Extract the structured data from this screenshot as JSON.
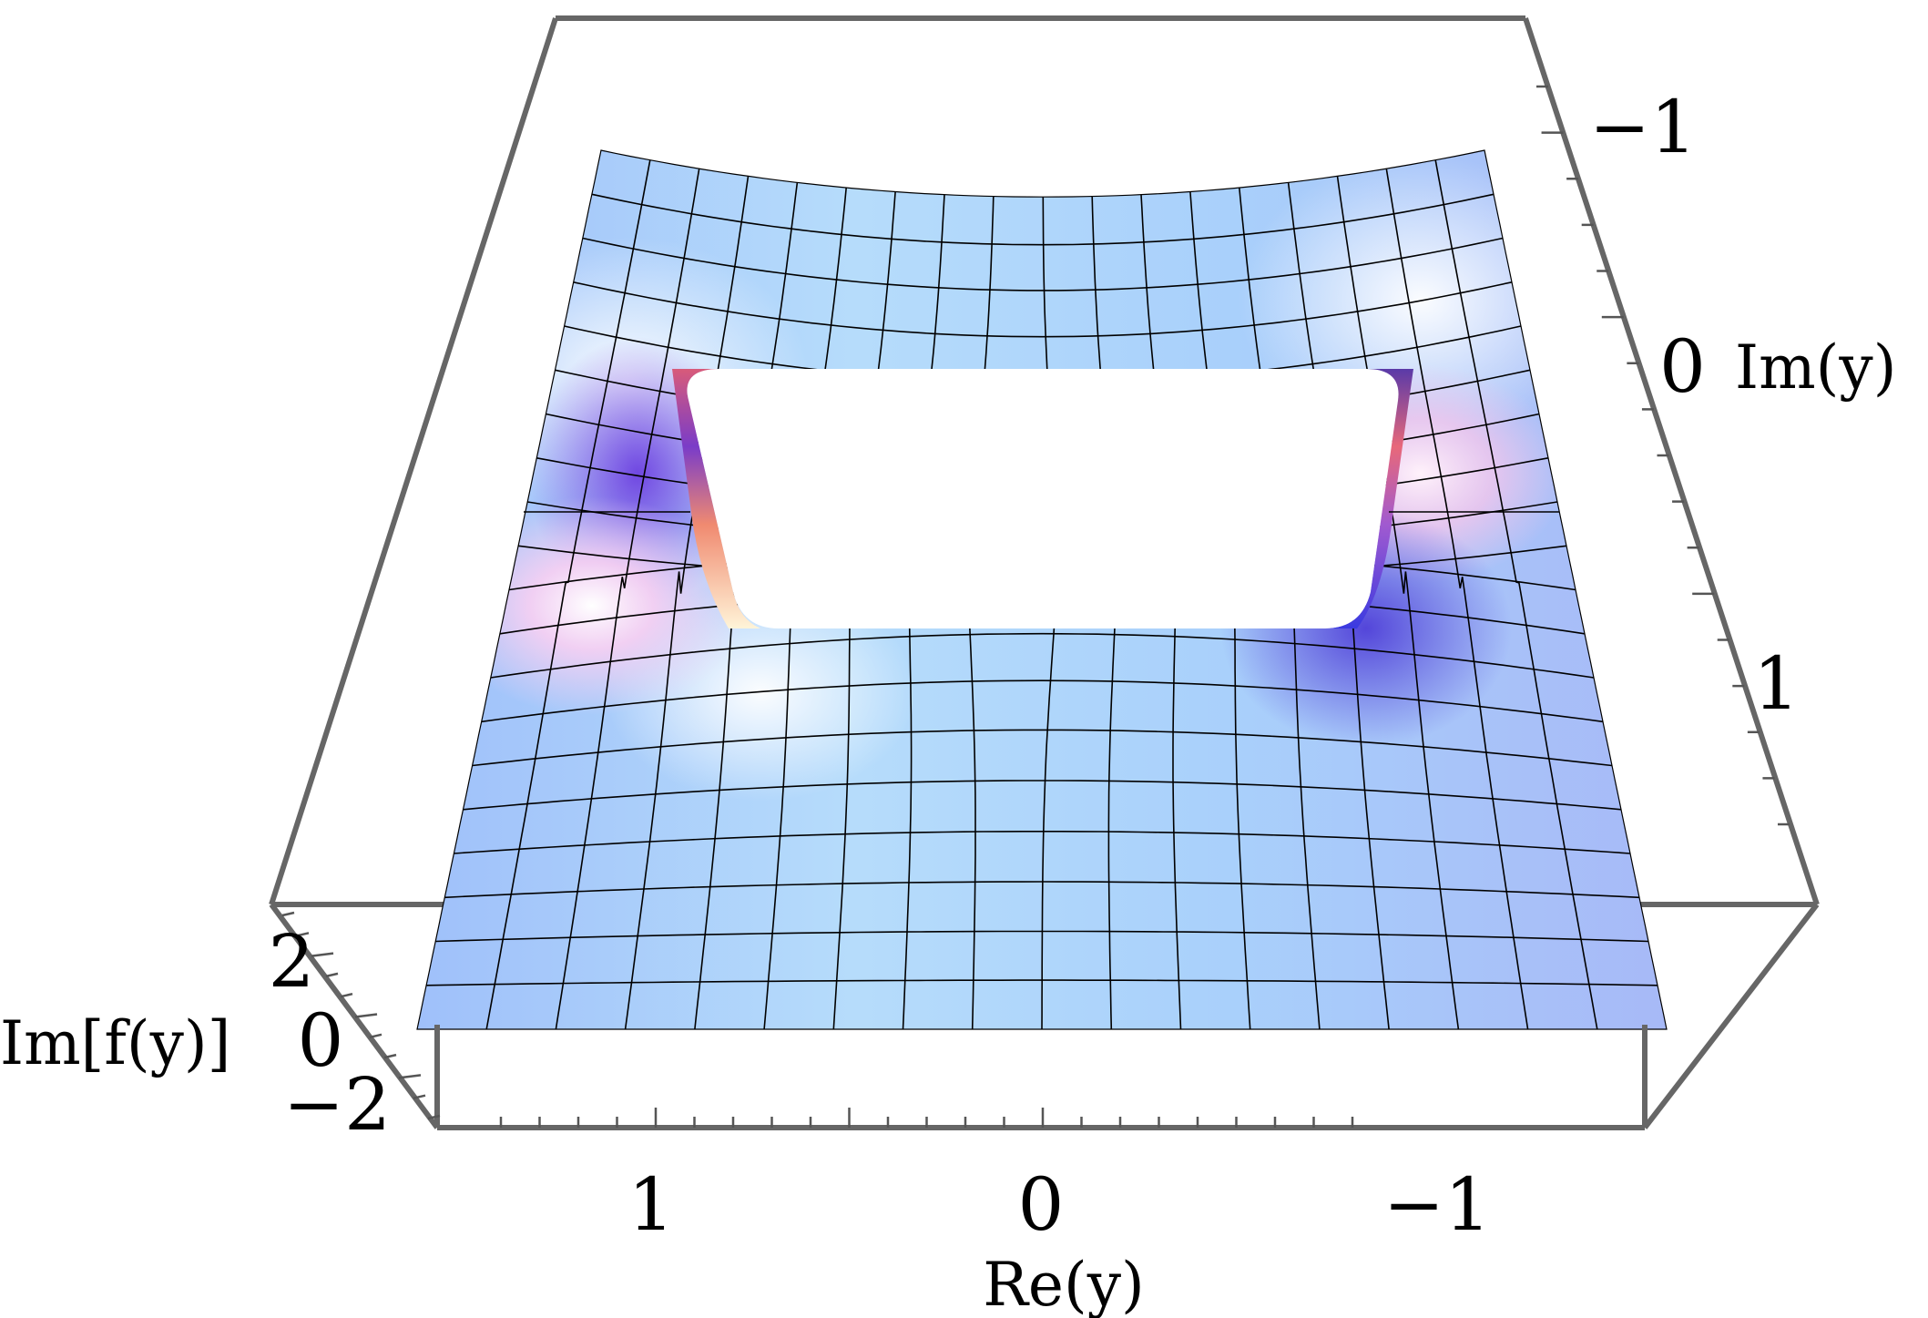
{
  "chart_data": {
    "type": "surface3d",
    "title": "",
    "axes": {
      "x": {
        "label": "Re(y)",
        "ticks": [
          "1",
          "0",
          "−1"
        ]
      },
      "y": {
        "label": "Im(y)",
        "ticks": [
          "−1",
          "0",
          "1"
        ]
      },
      "z": {
        "label": "Im[f(y)]",
        "ticks": [
          "2",
          "0",
          "−2"
        ]
      }
    },
    "surface_color": "#a9cff6",
    "highlight_colors": [
      "#6a4fd8",
      "#f06a7a",
      "#ffffff"
    ],
    "note": ""
  }
}
